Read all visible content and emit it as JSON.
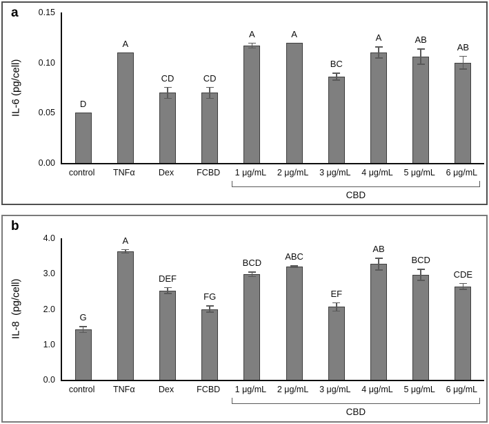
{
  "figure_caption_letters": [
    "a",
    "b"
  ],
  "colors": {
    "bar_fill": "#7f7f7f",
    "bar_border": "#3d3d3d",
    "error_bar": "#595959",
    "axis": "#0d0d0d",
    "panel_border": "#6b6b6b"
  },
  "chart_data": [
    {
      "type": "bar",
      "panel_label": "a",
      "title": "",
      "xlabel": "",
      "ylabel": "IL-6 (pg/cell)",
      "categories": [
        "control",
        "TNFα",
        "Dex",
        "FCBD",
        "1 μg/mL",
        "2 μg/mL",
        "3 μg/mL",
        "4 μg/mL",
        "5 μg/mL",
        "6 μg/mL"
      ],
      "values": [
        0.05,
        0.11,
        0.07,
        0.07,
        0.117,
        0.12,
        0.086,
        0.11,
        0.106,
        0.1
      ],
      "errors": [
        0,
        0,
        0.006,
        0.006,
        0.003,
        0,
        0.004,
        0.006,
        0.008,
        0.007
      ],
      "sig_letters": [
        "D",
        "A",
        "CD",
        "CD",
        "A",
        "A",
        "BC",
        "A",
        "AB",
        "AB"
      ],
      "ylim": [
        0,
        0.15
      ],
      "ytick_labels": [
        "0.00",
        "0.05",
        "0.10",
        "0.15"
      ],
      "ytick_values": [
        0,
        0.05,
        0.1,
        0.15
      ],
      "grid": false,
      "legend": null,
      "group_bracket": {
        "label": "CBD",
        "from_index": 4,
        "to_index": 9
      }
    },
    {
      "type": "bar",
      "panel_label": "b",
      "title": "",
      "xlabel": "",
      "ylabel": "IL-8  (pg/cell)",
      "categories": [
        "control",
        "TNFα",
        "Dex",
        "FCBD",
        "1 μg/mL",
        "2 μg/mL",
        "3 μg/mL",
        "4 μg/mL",
        "5 μg/mL",
        "6 μg/mL"
      ],
      "values": [
        1.42,
        3.63,
        2.52,
        2.0,
        2.98,
        3.2,
        2.06,
        3.27,
        2.97,
        2.64
      ],
      "errors": [
        0.1,
        0.06,
        0.1,
        0.1,
        0.08,
        0.03,
        0.13,
        0.18,
        0.17,
        0.1
      ],
      "sig_letters": [
        "G",
        "A",
        "DEF",
        "FG",
        "BCD",
        "ABC",
        "EF",
        "AB",
        "BCD",
        "CDE"
      ],
      "ylim": [
        0,
        4.0
      ],
      "ytick_labels": [
        "0.0",
        "1.0",
        "2.0",
        "3.0",
        "4.0"
      ],
      "ytick_values": [
        0,
        1.0,
        2.0,
        3.0,
        4.0
      ],
      "grid": false,
      "legend": null,
      "group_bracket": {
        "label": "CBD",
        "from_index": 4,
        "to_index": 9
      }
    }
  ]
}
